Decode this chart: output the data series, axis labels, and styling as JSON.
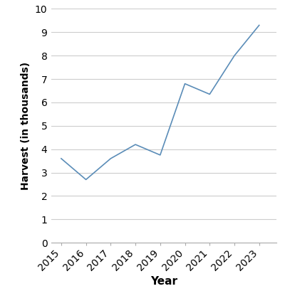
{
  "years": [
    2015,
    2016,
    2017,
    2018,
    2019,
    2020,
    2021,
    2022,
    2023
  ],
  "harvest": [
    3.6,
    2.7,
    3.6,
    4.2,
    3.75,
    6.8,
    6.35,
    8.0,
    9.3
  ],
  "line_color": "#5b8db8",
  "xlabel": "Year",
  "ylabel": "Harvest (in thousands)",
  "ylim": [
    0,
    10
  ],
  "yticks": [
    0,
    1,
    2,
    3,
    4,
    5,
    6,
    7,
    8,
    9,
    10
  ],
  "background_color": "#ffffff",
  "grid_color": "#cccccc",
  "line_width": 1.2,
  "xlabel_fontsize": 11,
  "ylabel_fontsize": 10,
  "tick_fontsize": 10
}
